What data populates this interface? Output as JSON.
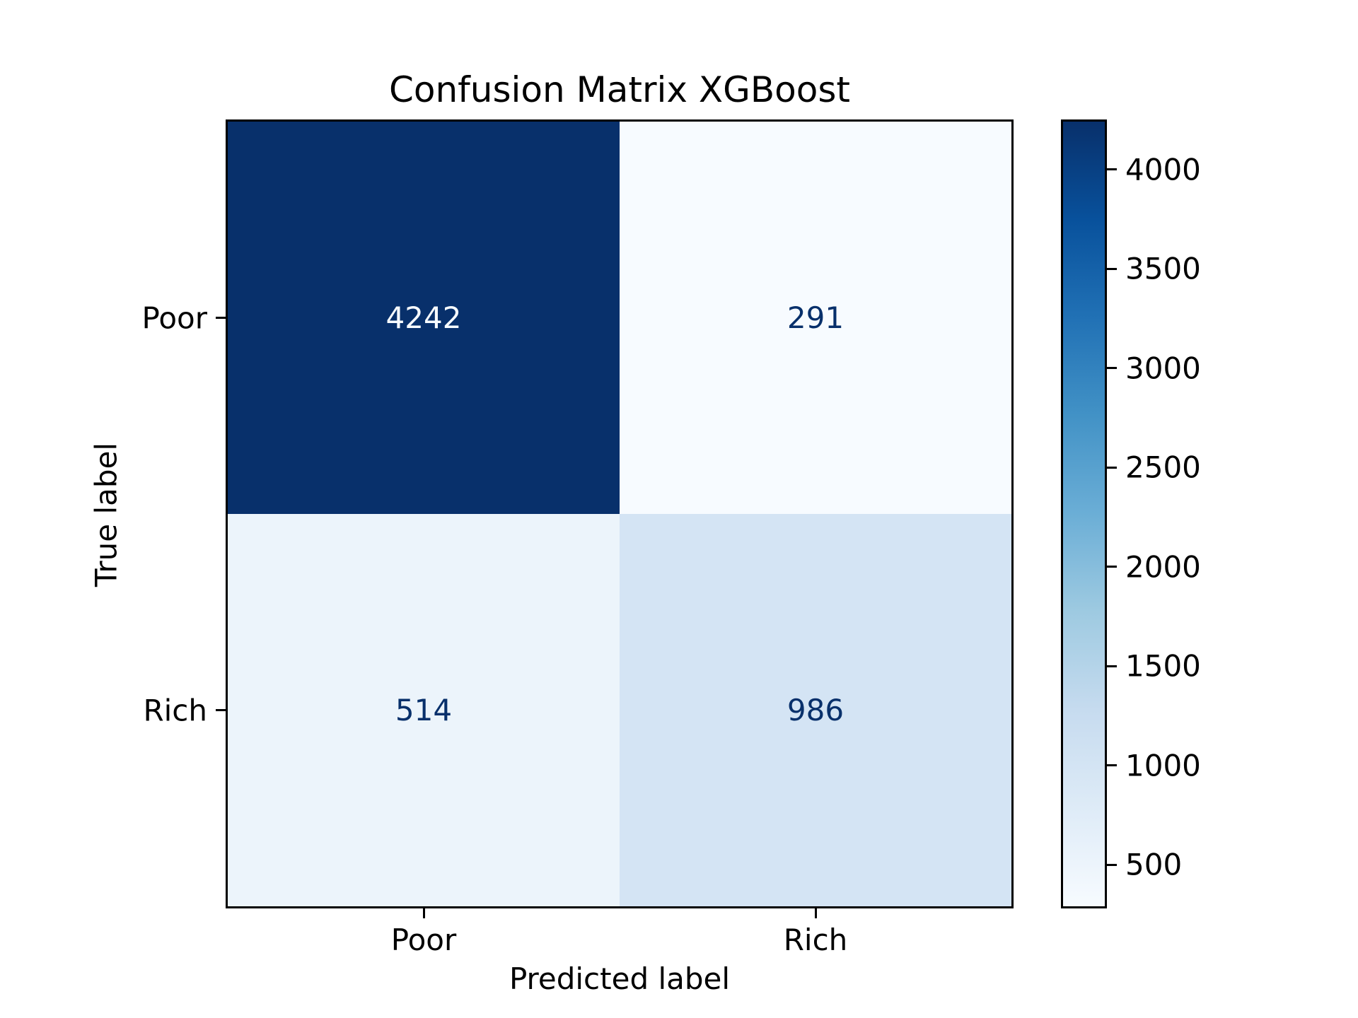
{
  "chart_data": {
    "type": "heatmap",
    "title": "Confusion Matrix XGBoost",
    "xlabel": "Predicted label",
    "ylabel": "True label",
    "x_categories": [
      "Poor",
      "Rich"
    ],
    "y_categories": [
      "Poor",
      "Rich"
    ],
    "matrix": [
      [
        4242,
        291
      ],
      [
        514,
        986
      ]
    ],
    "colormap": "Blues",
    "vmin": 291,
    "vmax": 4242,
    "colorbar_ticks": [
      500,
      1000,
      1500,
      2000,
      2500,
      3000,
      3500,
      4000
    ],
    "colorbar_position": "right",
    "colormap_stops": [
      "#f7fbff",
      "#deebf7",
      "#c6dbef",
      "#9ecae1",
      "#6baed6",
      "#4292c6",
      "#2171b5",
      "#08519c",
      "#08306b"
    ],
    "cell_colors": [
      [
        "#08306b",
        "#f7fbff"
      ],
      [
        "#ecf4fb",
        "#d4e4f4"
      ]
    ],
    "cell_text_colors": [
      [
        "#f7fbff",
        "#08306b"
      ],
      [
        "#08306b",
        "#08306b"
      ]
    ],
    "axis_color": "#000000",
    "background_color": "#ffffff"
  }
}
